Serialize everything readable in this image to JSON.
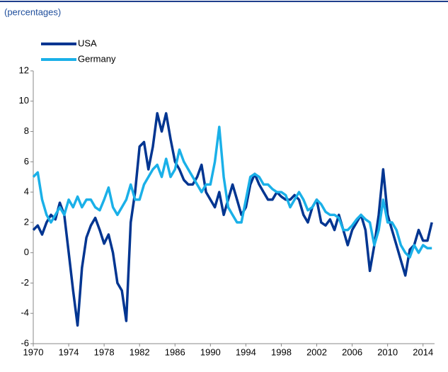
{
  "chart_data": {
    "type": "line",
    "subtitle": "(percentages)",
    "x": [
      1970,
      1970.5,
      1971,
      1971.5,
      1972,
      1972.5,
      1973,
      1973.5,
      1974,
      1974.5,
      1975,
      1975.5,
      1976,
      1976.5,
      1977,
      1977.5,
      1978,
      1978.5,
      1979,
      1979.5,
      1980,
      1980.5,
      1981,
      1981.5,
      1982,
      1982.5,
      1983,
      1983.5,
      1984,
      1984.5,
      1985,
      1985.5,
      1986,
      1986.5,
      1987,
      1987.5,
      1988,
      1988.5,
      1989,
      1989.5,
      1990,
      1990.5,
      1991,
      1991.5,
      1992,
      1992.5,
      1993,
      1993.5,
      1994,
      1994.5,
      1995,
      1995.5,
      1996,
      1996.5,
      1997,
      1997.5,
      1998,
      1998.5,
      1999,
      1999.5,
      2000,
      2000.5,
      2001,
      2001.5,
      2002,
      2002.5,
      2003,
      2003.5,
      2004,
      2004.5,
      2005,
      2005.5,
      2006,
      2006.5,
      2007,
      2007.5,
      2008,
      2008.5,
      2009,
      2009.5,
      2010,
      2010.5,
      2011,
      2011.5,
      2012,
      2012.5,
      2013,
      2013.5,
      2014,
      2014.5,
      2015
    ],
    "series": [
      {
        "name": "USA",
        "color": "#003591",
        "values": [
          1.5,
          1.8,
          1.2,
          2.0,
          2.5,
          2.2,
          3.3,
          2.5,
          0,
          -2.5,
          -4.8,
          -1.0,
          1.0,
          1.8,
          2.3,
          1.5,
          0.6,
          1.2,
          0,
          -2,
          -2.5,
          -4.5,
          2,
          4,
          7,
          7.3,
          5.5,
          7,
          9.2,
          8,
          9.2,
          7.5,
          6,
          5.5,
          4.8,
          4.5,
          4.5,
          5,
          5.8,
          4,
          3.5,
          3,
          4,
          2.5,
          3.5,
          4.5,
          3.5,
          2.5,
          3,
          4.5,
          5.2,
          4.5,
          4,
          3.5,
          3.5,
          4,
          3.7,
          3.5,
          3.5,
          3.8,
          3.5,
          2.5,
          2,
          3,
          3.5,
          2,
          1.8,
          2.2,
          1.5,
          2.5,
          1.5,
          0.5,
          1.5,
          2,
          2.5,
          1.5,
          -1.2,
          0.5,
          2.5,
          5.5,
          2.5,
          1.5,
          0.5,
          -0.5,
          -1.5,
          0.2,
          0.5,
          1.5,
          0.8,
          0.8,
          2.0
        ]
      },
      {
        "name": "Germany",
        "color": "#1ab0e8",
        "values": [
          5,
          5.3,
          3.5,
          2.5,
          2,
          2.5,
          3,
          2.5,
          3.5,
          3,
          3.7,
          3,
          3.5,
          3.5,
          3,
          2.8,
          3.5,
          4.3,
          3,
          2.5,
          3,
          3.5,
          4.5,
          3.5,
          3.5,
          4.5,
          5,
          5.5,
          5.8,
          5,
          6.2,
          5,
          5.5,
          6.8,
          6,
          5.5,
          5,
          4.5,
          4,
          4.5,
          4.5,
          6,
          8.3,
          5,
          3,
          2.5,
          2,
          2,
          3.5,
          5,
          5.2,
          5,
          4.5,
          4.5,
          4.2,
          4,
          4,
          3.8,
          3,
          3.5,
          4,
          3.5,
          2.8,
          3,
          3.5,
          3.2,
          2.7,
          2.5,
          2.5,
          2.3,
          1.5,
          1.5,
          1.8,
          2.2,
          2.5,
          2.2,
          2,
          0.5,
          1.5,
          3.5,
          2,
          2,
          1.5,
          0.5,
          0,
          -0.3,
          0.5,
          0,
          0.5,
          0.3,
          0.3
        ]
      }
    ],
    "xlim": [
      1970,
      2015.3
    ],
    "xticks": [
      1970,
      1974,
      1978,
      1982,
      1986,
      1990,
      1994,
      1998,
      2002,
      2006,
      2010,
      2014
    ],
    "ylim": [
      -6,
      12
    ],
    "yticks": [
      -6,
      -4,
      -2,
      0,
      2,
      4,
      6,
      8,
      10,
      12
    ]
  }
}
